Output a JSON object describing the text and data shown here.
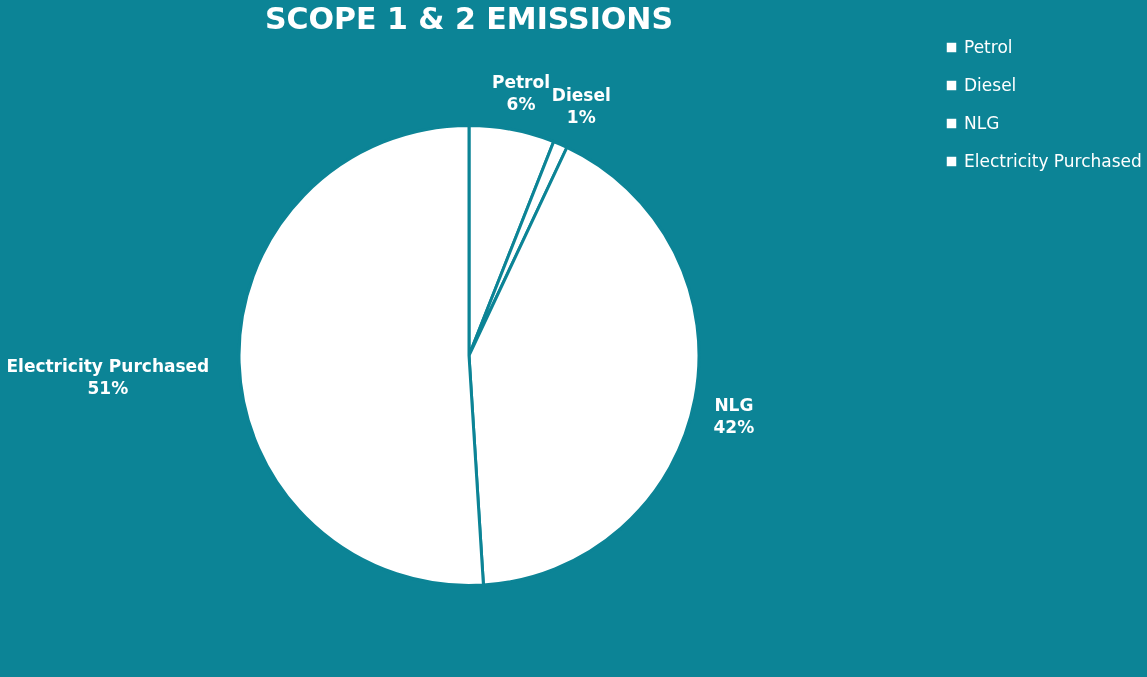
{
  "chart_data": {
    "type": "pie",
    "title": "SCOPE 1 & 2 EMISSIONS",
    "categories": [
      "Petrol",
      "Diesel",
      "NLG",
      "Electricity Purchased"
    ],
    "values": [
      6,
      1,
      42,
      51
    ],
    "colors": [
      "#ffffff",
      "#ffffff",
      "#ffffff",
      "#ffffff"
    ],
    "value_labels": [
      "6%",
      "1%",
      "42%",
      "51%"
    ],
    "legend": "right"
  }
}
